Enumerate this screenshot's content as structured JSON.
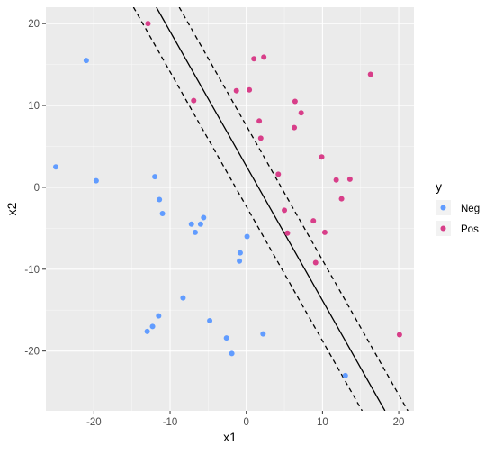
{
  "chart_data": {
    "type": "scatter",
    "title": "",
    "xlabel": "x1",
    "ylabel": "x2",
    "xlim": [
      -26.3,
      22.0
    ],
    "ylim": [
      -27.3,
      22.0
    ],
    "xticks": [
      -20,
      -10,
      0,
      10,
      20
    ],
    "yticks": [
      -20,
      -10,
      0,
      10,
      20
    ],
    "grid": true,
    "legend": {
      "title": "y",
      "placement": "right",
      "entries": [
        "Neg",
        "Pos"
      ]
    },
    "series": [
      {
        "name": "Neg",
        "color": "#619CFF",
        "points": [
          [
            -25,
            2.5
          ],
          [
            -21,
            15.5
          ],
          [
            -19.7,
            0.8
          ],
          [
            -12,
            1.3
          ],
          [
            -11.4,
            -1.5
          ],
          [
            -11,
            -3.2
          ],
          [
            -7.2,
            -4.5
          ],
          [
            -6.7,
            -5.5
          ],
          [
            -6,
            -4.5
          ],
          [
            -5.6,
            -3.7
          ],
          [
            0.1,
            -6
          ],
          [
            -0.8,
            -8
          ],
          [
            -0.9,
            -9
          ],
          [
            -8.3,
            -13.5
          ],
          [
            -11.5,
            -15.7
          ],
          [
            -12.3,
            -17
          ],
          [
            -13,
            -17.6
          ],
          [
            -4.8,
            -16.3
          ],
          [
            -2.6,
            -18.4
          ],
          [
            -1.9,
            -20.3
          ],
          [
            2.2,
            -17.9
          ],
          [
            13,
            -23
          ]
        ]
      },
      {
        "name": "Pos",
        "color": "#D83E89",
        "points": [
          [
            -12.9,
            20
          ],
          [
            1,
            15.7
          ],
          [
            2.3,
            15.9
          ],
          [
            -6.9,
            10.6
          ],
          [
            -1.3,
            11.8
          ],
          [
            0.4,
            11.9
          ],
          [
            6.4,
            10.5
          ],
          [
            7.2,
            9.1
          ],
          [
            16.3,
            13.8
          ],
          [
            1.7,
            8.1
          ],
          [
            1.9,
            6
          ],
          [
            6.3,
            7.3
          ],
          [
            9.9,
            3.7
          ],
          [
            11.8,
            0.9
          ],
          [
            13.6,
            1
          ],
          [
            4.2,
            1.6
          ],
          [
            12.5,
            -1.4
          ],
          [
            5,
            -2.8
          ],
          [
            8.8,
            -4.1
          ],
          [
            5.4,
            -5.6
          ],
          [
            10.3,
            -5.5
          ],
          [
            9.1,
            -9.2
          ],
          [
            20.1,
            -18
          ]
        ]
      }
    ],
    "lines": [
      {
        "style": "solid",
        "from": [
          -11.8,
          22.0
        ],
        "to": [
          18.2,
          -27.3
        ]
      },
      {
        "style": "dashed",
        "from": [
          -14.8,
          22.0
        ],
        "to": [
          15.2,
          -27.3
        ]
      },
      {
        "style": "dashed",
        "from": [
          -8.8,
          22.0
        ],
        "to": [
          21.2,
          -27.3
        ]
      }
    ]
  }
}
